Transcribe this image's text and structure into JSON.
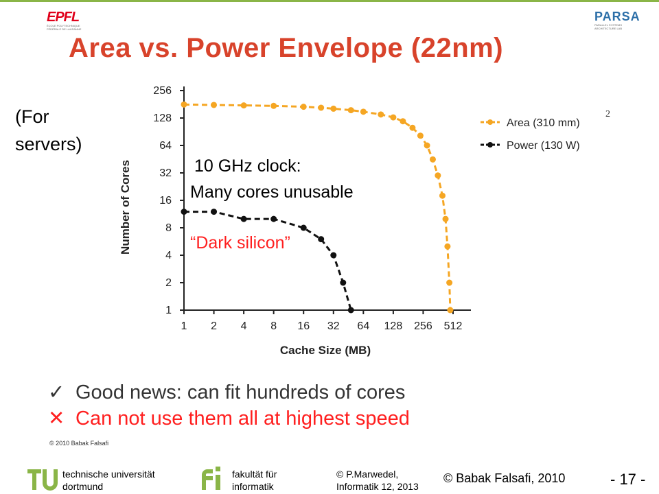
{
  "header": {
    "logo_left": "EPFL",
    "logo_left_sub": "ÉCOLE POLYTECHNIQUE FÉDÉRALE DE LAUSANNE",
    "logo_right": "PARSA",
    "logo_right_sub": "PARALLEL SYSTEMS ARCHITECTURE LAB",
    "title": "Area vs. Power Envelope (22nm)"
  },
  "side_note": {
    "line1": "(For",
    "line2": "servers)"
  },
  "annotations": {
    "clock_line1": "10 GHz clock:",
    "clock_line2": "Many cores unusable",
    "dark_silicon": "“Dark silicon”"
  },
  "bullets": [
    {
      "mark": "✓",
      "text": "Good news: can fit hundreds of cores"
    },
    {
      "mark": "✕",
      "text": "Can not use them all at highest speed"
    }
  ],
  "copyright_small": "© 2010 Babak Falsafi",
  "footer": {
    "university_line1": "technische universität",
    "university_line2": "dortmund",
    "faculty_line1": "fakultät für",
    "faculty_line2": "informatik",
    "author_line1": "© P.Marwedel,",
    "author_line2": "Informatik 12,  2013",
    "copyright": "© Babak Falsafi, 2010",
    "page": "- 17 -"
  },
  "colors": {
    "title": "#d8432b",
    "area": "#f5a623",
    "power": "#111111",
    "red": "#ff1f1f",
    "tu_green": "#8ab547"
  },
  "chart_data": {
    "type": "line",
    "xlabel": "Cache Size (MB)",
    "ylabel": "Number of Cores",
    "x_scale": "log2",
    "y_scale": "log2",
    "xlim": [
      1,
      512
    ],
    "ylim": [
      1,
      256
    ],
    "x_ticks": [
      1,
      2,
      4,
      8,
      16,
      32,
      64,
      128,
      256,
      512
    ],
    "y_ticks": [
      1,
      2,
      4,
      8,
      16,
      32,
      64,
      128,
      256
    ],
    "legend_position": "right",
    "series": [
      {
        "name": "Area (310 mm",
        "superscript": "2",
        "legend_suffix": ")",
        "color": "#f5a623",
        "style": "dashed",
        "points": [
          [
            1,
            180
          ],
          [
            2,
            178
          ],
          [
            4,
            176
          ],
          [
            8,
            174
          ],
          [
            16,
            170
          ],
          [
            24,
            166
          ],
          [
            32,
            162
          ],
          [
            48,
            156
          ],
          [
            64,
            150
          ],
          [
            96,
            140
          ],
          [
            128,
            130
          ],
          [
            160,
            118
          ],
          [
            200,
            100
          ],
          [
            240,
            82
          ],
          [
            280,
            64
          ],
          [
            320,
            45
          ],
          [
            360,
            30
          ],
          [
            400,
            18
          ],
          [
            430,
            10
          ],
          [
            450,
            5
          ],
          [
            470,
            2
          ],
          [
            480,
            1
          ]
        ]
      },
      {
        "name": "Power (130 W)",
        "color": "#111111",
        "style": "dashed",
        "points": [
          [
            1,
            12
          ],
          [
            2,
            12
          ],
          [
            4,
            10
          ],
          [
            8,
            10
          ],
          [
            16,
            8
          ],
          [
            24,
            6
          ],
          [
            32,
            4
          ],
          [
            40,
            2
          ],
          [
            48,
            1
          ]
        ]
      }
    ]
  }
}
